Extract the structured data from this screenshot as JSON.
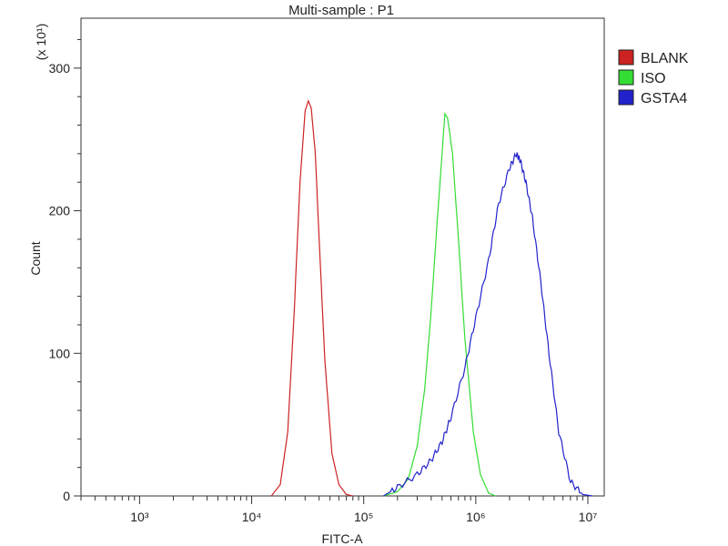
{
  "chart_data": {
    "type": "line",
    "title": "Multi-sample : P1",
    "xlabel": "FITC-A",
    "ylabel": "Count",
    "y_multiplier": "(x 10¹)",
    "x_scale": "log",
    "xlim": [
      300,
      14000000
    ],
    "ylim": [
      0,
      335
    ],
    "x_ticks": [
      {
        "value": 1000,
        "label": "10³"
      },
      {
        "value": 10000,
        "label": "10⁴"
      },
      {
        "value": 100000,
        "label": "10⁵"
      },
      {
        "value": 1000000,
        "label": "10⁶"
      },
      {
        "value": 10000000,
        "label": "10⁷"
      }
    ],
    "y_ticks": [
      {
        "value": 0,
        "label": "0"
      },
      {
        "value": 100,
        "label": "100"
      },
      {
        "value": 200,
        "label": "200"
      },
      {
        "value": 300,
        "label": "300"
      }
    ],
    "legend_position": "top-right",
    "series": [
      {
        "name": "BLANK",
        "color": "#cc2222",
        "x": [
          15000,
          18000,
          21000,
          24000,
          27000,
          30000,
          32000,
          34000,
          37000,
          40000,
          45000,
          52000,
          60000,
          70000,
          80000
        ],
        "values": [
          0,
          8,
          45,
          130,
          220,
          270,
          277,
          272,
          240,
          180,
          95,
          30,
          8,
          1,
          0
        ]
      },
      {
        "name": "ISO",
        "color": "#33dd33",
        "x": [
          150000,
          200000,
          250000,
          300000,
          350000,
          400000,
          450000,
          500000,
          530000,
          560000,
          620000,
          700000,
          800000,
          950000,
          1100000,
          1300000,
          1500000
        ],
        "values": [
          0,
          3,
          12,
          35,
          75,
          130,
          190,
          240,
          268,
          265,
          240,
          180,
          110,
          45,
          15,
          2,
          0
        ]
      },
      {
        "name": "GSTA4",
        "color": "#2222cc",
        "x": [
          150000,
          200000,
          300000,
          400000,
          500000,
          600000,
          800000,
          1000000,
          1300000,
          1600000,
          2000000,
          2300000,
          2500000,
          2800000,
          3200000,
          3800000,
          4500000,
          5500000,
          7000000,
          9000000,
          11000000
        ],
        "values": [
          0,
          6,
          15,
          25,
          38,
          55,
          90,
          125,
          165,
          205,
          230,
          240,
          235,
          220,
          195,
          150,
          100,
          45,
          10,
          1,
          0
        ]
      }
    ]
  }
}
